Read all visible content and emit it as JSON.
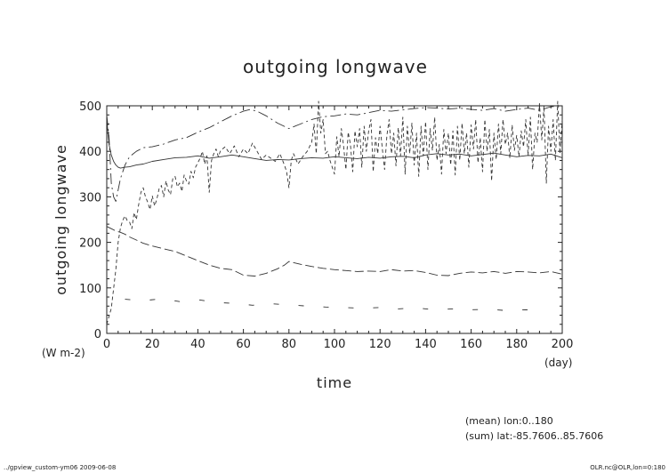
{
  "chart_data": {
    "type": "line",
    "title": "outgoing longwave",
    "xlabel": "time",
    "ylabel": "outgoing longwave",
    "x_unit": "(day)",
    "y_unit": "(W m-2)",
    "xlim": [
      0,
      200
    ],
    "ylim": [
      0,
      500
    ],
    "x_ticks": [
      0,
      20,
      40,
      60,
      80,
      100,
      120,
      140,
      160,
      180,
      200
    ],
    "y_ticks": [
      0,
      100,
      200,
      300,
      400,
      500
    ],
    "grid": false,
    "legend": "none",
    "series": [
      {
        "style": "solid",
        "x": [
          0,
          1,
          2,
          3,
          4,
          5,
          6,
          8,
          10,
          13,
          16,
          20,
          25,
          30,
          35,
          40,
          45,
          50,
          55,
          60,
          65,
          70,
          75,
          80,
          85,
          90,
          95,
          100,
          105,
          110,
          115,
          120,
          125,
          130,
          135,
          140,
          145,
          150,
          155,
          160,
          165,
          170,
          175,
          180,
          185,
          190,
          195,
          200
        ],
        "y": [
          470,
          415,
          392,
          378,
          370,
          365,
          363,
          365,
          366,
          370,
          372,
          378,
          382,
          386,
          387,
          390,
          385,
          388,
          392,
          388,
          384,
          380,
          382,
          381,
          384,
          386,
          385,
          388,
          386,
          384,
          387,
          385,
          388,
          389,
          386,
          392,
          395,
          392,
          394,
          390,
          393,
          396,
          392,
          388,
          391,
          390,
          394,
          386
        ]
      },
      {
        "style": "dash-dot",
        "x": [
          0,
          1,
          2,
          3,
          4,
          6,
          8,
          10,
          13,
          16,
          20,
          25,
          30,
          35,
          40,
          45,
          50,
          55,
          60,
          63,
          66,
          70,
          75,
          80,
          85,
          90,
          95,
          100,
          105,
          110,
          115,
          120,
          125,
          130,
          135,
          140,
          145,
          150,
          155,
          160,
          165,
          170,
          175,
          180,
          185,
          190,
          195,
          200
        ],
        "y": [
          480,
          430,
          330,
          300,
          290,
          340,
          370,
          388,
          400,
          408,
          410,
          416,
          425,
          430,
          442,
          452,
          465,
          478,
          488,
          492,
          488,
          478,
          462,
          450,
          460,
          470,
          476,
          478,
          482,
          480,
          485,
          490,
          488,
          491,
          494,
          496,
          495,
          493,
          495,
          492,
          490,
          494,
          488,
          492,
          495,
          490,
          498,
          500
        ]
      },
      {
        "style": "long-dash",
        "x": [
          0,
          2,
          4,
          6,
          8,
          10,
          13,
          16,
          20,
          25,
          30,
          35,
          40,
          45,
          50,
          55,
          60,
          65,
          70,
          75,
          78,
          80,
          85,
          90,
          95,
          100,
          105,
          110,
          115,
          120,
          125,
          130,
          135,
          140,
          145,
          150,
          155,
          160,
          165,
          170,
          175,
          180,
          185,
          190,
          195,
          200
        ],
        "y": [
          235,
          230,
          225,
          222,
          218,
          212,
          205,
          198,
          192,
          186,
          180,
          170,
          160,
          150,
          143,
          140,
          128,
          126,
          132,
          142,
          150,
          158,
          152,
          147,
          143,
          140,
          138,
          136,
          137,
          136,
          140,
          137,
          138,
          134,
          128,
          127,
          132,
          135,
          133,
          136,
          132,
          136,
          135,
          133,
          136,
          130
        ]
      },
      {
        "style": "dashed",
        "x": [
          0,
          2,
          4,
          5,
          6,
          7,
          8,
          9,
          10,
          11,
          12,
          13,
          14,
          15,
          16,
          17,
          18,
          19,
          20,
          21,
          22,
          23,
          24,
          25,
          26,
          27,
          28,
          29,
          30,
          31,
          32,
          33,
          34,
          35,
          36,
          37,
          38,
          39,
          40,
          41,
          42,
          43,
          44,
          45,
          46,
          47,
          48,
          49,
          50,
          52,
          54,
          56,
          58,
          60,
          62,
          64,
          66,
          68,
          70,
          72,
          74,
          76,
          78,
          79,
          80,
          81,
          82,
          84,
          86,
          88,
          90,
          91,
          92,
          93,
          94,
          95,
          96,
          97,
          98,
          100,
          101,
          102,
          103,
          104,
          105,
          106,
          107,
          108,
          109,
          110,
          111,
          112,
          113,
          114,
          115,
          116,
          117,
          118,
          119,
          120,
          121,
          122,
          123,
          124,
          125,
          126,
          127,
          128,
          129,
          130,
          131,
          132,
          133,
          134,
          135,
          136,
          137,
          138,
          139,
          140,
          141,
          142,
          143,
          144,
          145,
          146,
          147,
          148,
          149,
          150,
          151,
          152,
          153,
          154,
          155,
          156,
          157,
          158,
          159,
          160,
          161,
          162,
          163,
          164,
          165,
          166,
          167,
          168,
          169,
          170,
          171,
          172,
          173,
          174,
          175,
          176,
          177,
          178,
          179,
          180,
          181,
          182,
          183,
          184,
          185,
          186,
          187,
          188,
          189,
          190,
          191,
          192,
          193,
          194,
          195,
          196,
          197,
          198,
          199,
          200
        ],
        "y": [
          20,
          55,
          140,
          200,
          232,
          248,
          258,
          248,
          245,
          230,
          265,
          250,
          282,
          310,
          320,
          300,
          288,
          272,
          302,
          280,
          295,
          318,
          325,
          300,
          335,
          315,
          305,
          340,
          345,
          322,
          330,
          312,
          348,
          335,
          328,
          356,
          342,
          365,
          375,
          385,
          400,
          372,
          390,
          310,
          380,
          395,
          405,
          388,
          402,
          410,
          395,
          412,
          388,
          405,
          395,
          418,
          400,
          382,
          392,
          385,
          378,
          395,
          370,
          355,
          320,
          380,
          395,
          372,
          388,
          400,
          420,
          460,
          395,
          510,
          440,
          470,
          395,
          400,
          380,
          350,
          432,
          388,
          450,
          412,
          360,
          442,
          415,
          355,
          445,
          410,
          450,
          365,
          455,
          400,
          445,
          470,
          355,
          430,
          395,
          455,
          405,
          360,
          435,
          470,
          395,
          440,
          368,
          452,
          390,
          475,
          350,
          455,
          395,
          462,
          370,
          440,
          345,
          455,
          390,
          465,
          360,
          450,
          402,
          475,
          380,
          415,
          350,
          448,
          395,
          440,
          370,
          445,
          348,
          455,
          380,
          462,
          395,
          440,
          365,
          458,
          405,
          470,
          375,
          430,
          355,
          470,
          400,
          448,
          335,
          440,
          382,
          460,
          395,
          470,
          415,
          440,
          385,
          458,
          402,
          435,
          388,
          445,
          410,
          470,
          390,
          475,
          360,
          440,
          420,
          505,
          425,
          500,
          330,
          455,
          400,
          470,
          380,
          510,
          395,
          470
        ]
      },
      {
        "style": "sparse-dash",
        "x": [
          8,
          16,
          24,
          32,
          40,
          48,
          56,
          64,
          72,
          80,
          88,
          96,
          104,
          112,
          120,
          128,
          136,
          144,
          152,
          160,
          168,
          176,
          184,
          192
        ],
        "y": [
          75,
          72,
          76,
          70,
          74,
          68,
          66,
          62,
          65,
          63,
          60,
          58,
          57,
          55,
          57,
          54,
          56,
          52,
          54,
          52,
          53,
          50,
          52,
          48
        ]
      }
    ],
    "annotations": [
      "(mean) lon:0..180",
      "(sum) lat:-85.7606..85.7606"
    ]
  },
  "footer": {
    "left": "../gpview_custom-ym06  2009-06-08",
    "right": "OLR.nc@OLR,lon=0:180"
  }
}
